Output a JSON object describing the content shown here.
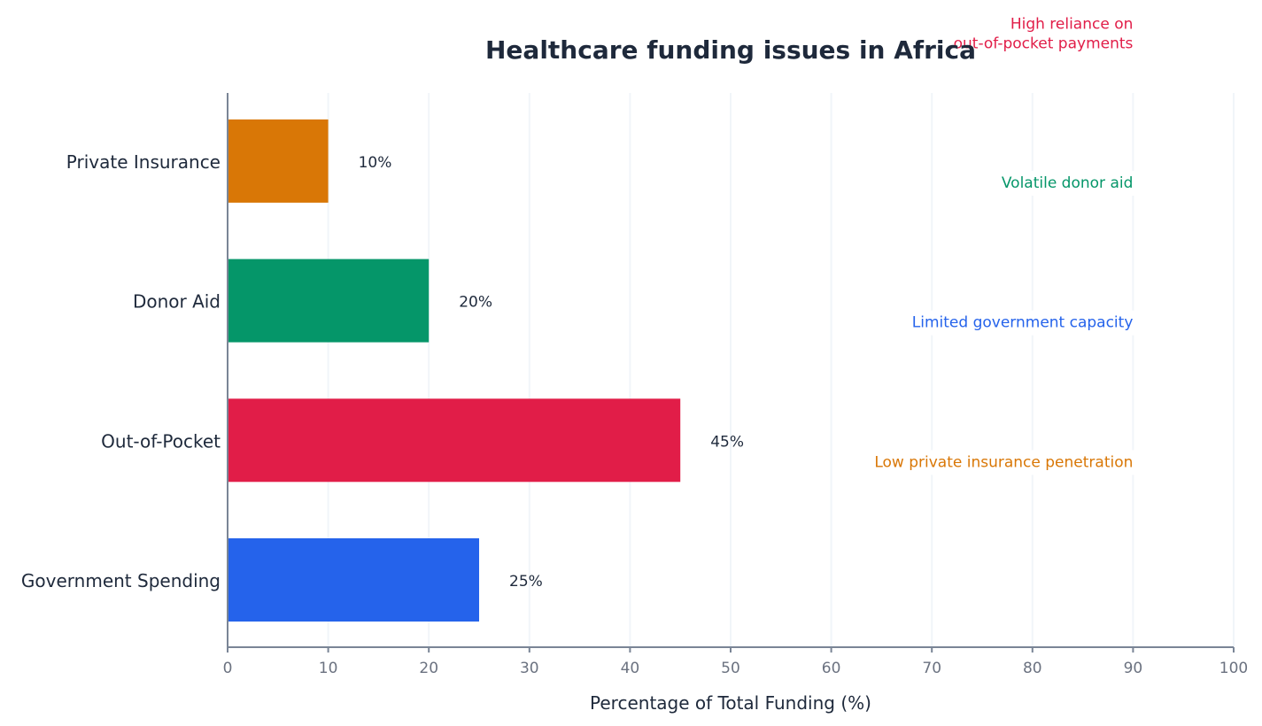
{
  "chart_data": {
    "type": "bar",
    "orientation": "horizontal",
    "title": "Healthcare funding issues in Africa",
    "xlabel": "Percentage of Total Funding (%)",
    "ylabel": "",
    "xlim": [
      0,
      100
    ],
    "xticks": [
      0,
      10,
      20,
      30,
      40,
      50,
      60,
      70,
      80,
      90,
      100
    ],
    "grid": "vertical",
    "categories": [
      "Government Spending",
      "Out-of-Pocket",
      "Donor Aid",
      "Private Insurance"
    ],
    "values": [
      25,
      45,
      20,
      10
    ],
    "data_labels": [
      "25%",
      "45%",
      "20%",
      "10%"
    ],
    "colors": [
      "#2563eb",
      "#e11d48",
      "#059669",
      "#d97706"
    ],
    "annotations": [
      {
        "lines": [
          "Low private insurance penetration"
        ],
        "color": "#d97706"
      },
      {
        "lines": [
          "Limited government capacity"
        ],
        "color": "#2563eb"
      },
      {
        "lines": [
          "Volatile donor aid"
        ],
        "color": "#059669"
      },
      {
        "lines": [
          "High reliance on",
          "out-of-pocket payments"
        ],
        "color": "#e11d48"
      }
    ]
  }
}
